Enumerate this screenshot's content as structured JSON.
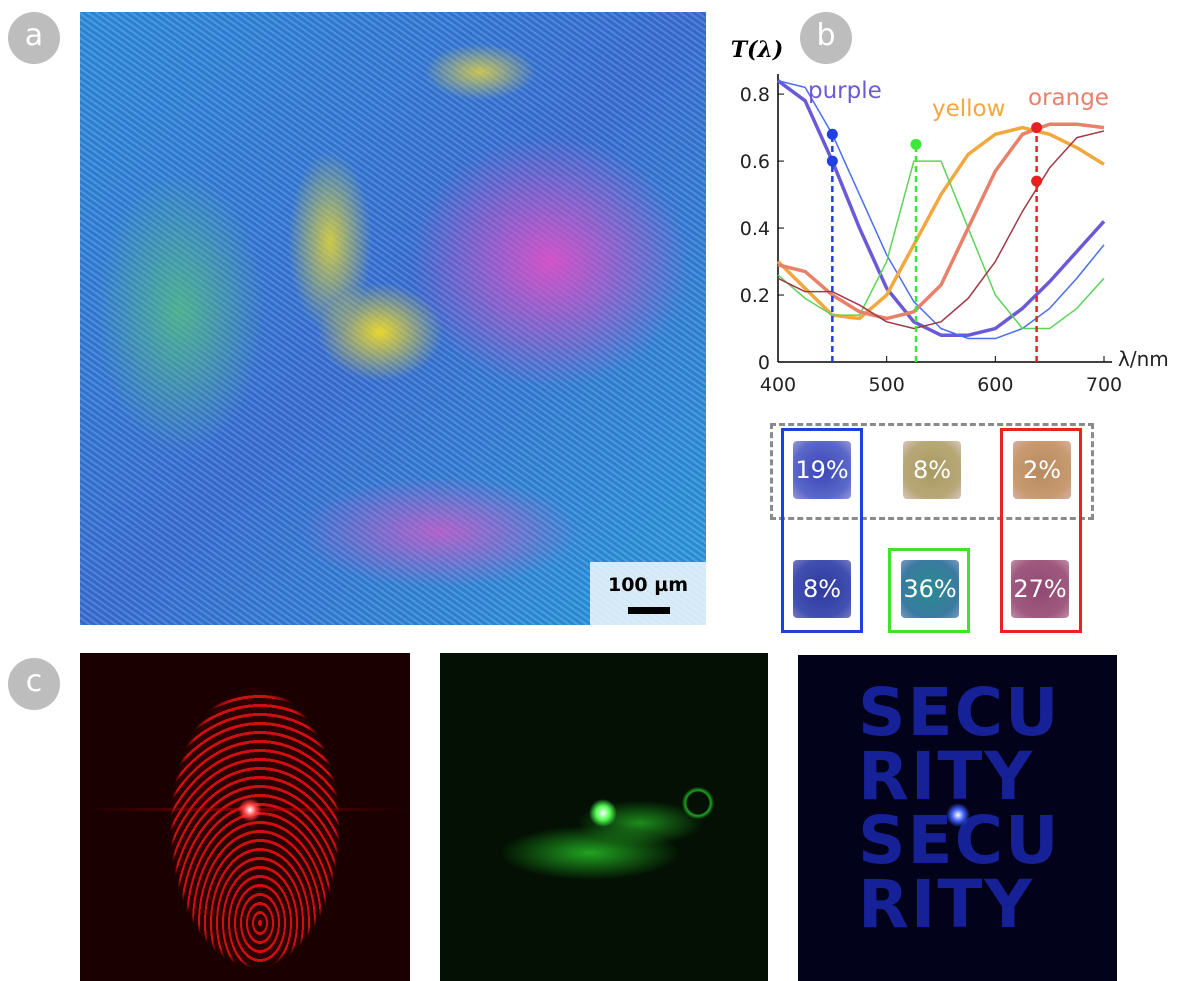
{
  "panel_labels": [
    "a",
    "b",
    "c"
  ],
  "scale_bar": "100 µm",
  "chart_data": {
    "type": "line",
    "y_label": "T(λ)",
    "x_label": "λ/nm",
    "x": [
      400,
      425,
      450,
      475,
      500,
      525,
      550,
      575,
      600,
      625,
      650,
      675,
      700
    ],
    "series": [
      {
        "name": "purple",
        "color": "#6a5ad8",
        "width": 3.5,
        "values": [
          0.84,
          0.78,
          0.6,
          0.4,
          0.22,
          0.12,
          0.08,
          0.08,
          0.1,
          0.16,
          0.24,
          0.33,
          0.42
        ]
      },
      {
        "color": "#4a6ef0",
        "width": 1.5,
        "values": [
          0.84,
          0.82,
          0.68,
          0.5,
          0.32,
          0.18,
          0.1,
          0.07,
          0.07,
          0.1,
          0.16,
          0.25,
          0.35
        ]
      },
      {
        "name": "yellow",
        "color": "#f2a83e",
        "width": 3.5,
        "values": [
          0.3,
          0.22,
          0.14,
          0.13,
          0.2,
          0.35,
          0.5,
          0.62,
          0.68,
          0.7,
          0.68,
          0.64,
          0.59
        ]
      },
      {
        "color": "#5ed35a",
        "width": 1.5,
        "values": [
          0.26,
          0.19,
          0.14,
          0.14,
          0.3,
          0.6,
          0.6,
          0.4,
          0.2,
          0.1,
          0.1,
          0.16,
          0.25
        ]
      },
      {
        "name": "orange",
        "color": "#e8806a",
        "width": 3.5,
        "values": [
          0.29,
          0.27,
          0.2,
          0.15,
          0.13,
          0.15,
          0.23,
          0.4,
          0.57,
          0.68,
          0.71,
          0.71,
          0.7
        ]
      },
      {
        "color": "#a0384a",
        "width": 1.5,
        "values": [
          0.25,
          0.21,
          0.21,
          0.17,
          0.12,
          0.1,
          0.12,
          0.19,
          0.3,
          0.45,
          0.58,
          0.67,
          0.69
        ]
      }
    ],
    "markers": [
      {
        "x": 450,
        "color": "#2040e0",
        "points": [
          0.68,
          0.6
        ]
      },
      {
        "x": 527,
        "color": "#3ee83a",
        "points": [
          0.65
        ]
      },
      {
        "x": 638,
        "color": "#e82020",
        "points": [
          0.7,
          0.54
        ]
      }
    ],
    "xlim": [
      400,
      700
    ],
    "ylim": [
      0,
      0.86
    ],
    "xticks": [
      400,
      500,
      600,
      700
    ],
    "yticks": [
      0,
      0.2,
      0.4,
      0.6,
      0.8
    ]
  },
  "swatches": [
    "19%",
    "8%",
    "2%",
    "8%",
    "36%",
    "27%"
  ],
  "speckle_text": [
    "SECU",
    "RITY",
    "SECU",
    "RITY"
  ]
}
